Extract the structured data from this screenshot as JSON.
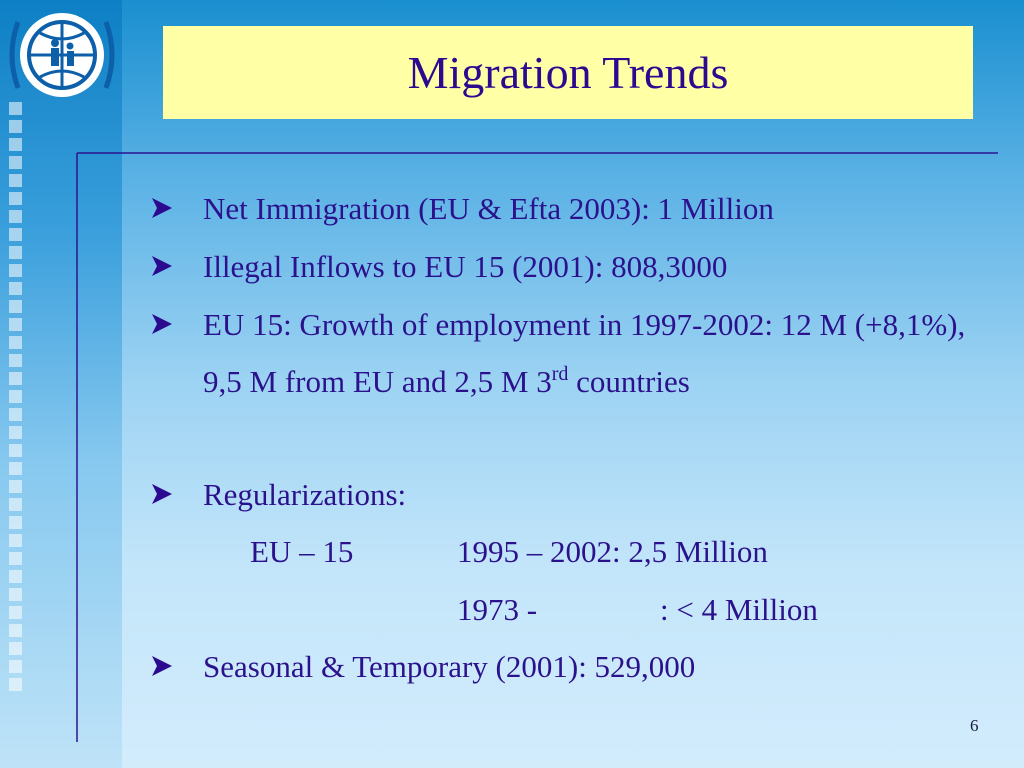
{
  "title": "Migration Trends",
  "bullets": [
    {
      "text": "Net Immigration (EU & Efta 2003): 1 Million"
    },
    {
      "text": "Illegal Inflows to EU 15 (2001): 808,3000"
    },
    {
      "text": "EU 15: Growth of employment in 1997-2002: 12 M (+8,1%), 9,5 M from EU and 2,5 M 3",
      "superscript": "rd",
      "tail": " countries"
    },
    {
      "text": "Regularizations:"
    },
    {
      "text": "Seasonal & Temporary (2001): 529,000"
    }
  ],
  "regularizations": {
    "region": "EU – 15",
    "lines": [
      {
        "period": "1995 – 2002",
        "value": ": 2,5 Million"
      },
      {
        "period": "1973 -",
        "value": ": < 4 Million"
      }
    ]
  },
  "page_number": "6"
}
